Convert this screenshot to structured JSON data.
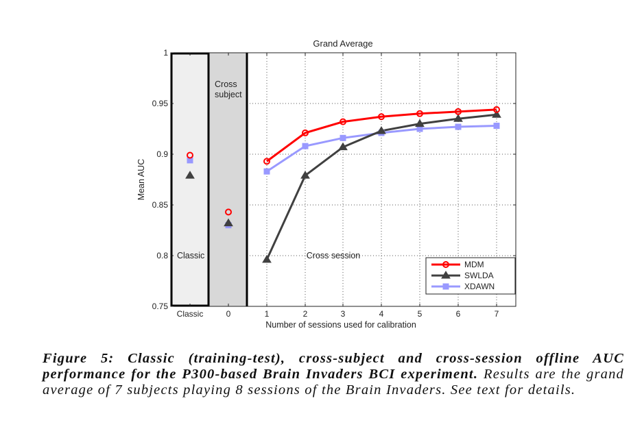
{
  "chart_data": {
    "type": "line",
    "title": "Grand Average",
    "xlabel": "Number of sessions used for calibration",
    "ylabel": "Mean AUC",
    "ylim": [
      0.75,
      1
    ],
    "yticks": [
      "0.75",
      "0.8",
      "0.85",
      "0.9",
      "0.95",
      "1"
    ],
    "yticks_values": [
      0.75,
      0.8,
      0.85,
      0.9,
      0.95,
      1.0
    ],
    "categories": [
      "Classic",
      "0",
      "1",
      "2",
      "3",
      "4",
      "5",
      "6",
      "7"
    ],
    "grid": true,
    "legend_position": "bottom-right",
    "regions": {
      "classic": "Classic",
      "cross_subject": "Cross\nsubject",
      "cross_session": "Cross session"
    },
    "series": [
      {
        "name": "MDM",
        "color": "#ff0000",
        "marker": "circle",
        "classic": 0.899,
        "cross_subject": 0.843,
        "cross_session": [
          0.893,
          0.921,
          0.932,
          0.937,
          0.94,
          0.942,
          0.944
        ]
      },
      {
        "name": "SWLDA",
        "color": "#404040",
        "marker": "triangle",
        "classic": 0.879,
        "cross_subject": 0.832,
        "cross_session": [
          0.796,
          0.879,
          0.907,
          0.923,
          0.93,
          0.935,
          0.939
        ]
      },
      {
        "name": "XDAWN",
        "color": "#9999ff",
        "marker": "square",
        "classic": 0.894,
        "cross_subject": 0.83,
        "cross_session": [
          0.883,
          0.908,
          0.916,
          0.921,
          0.925,
          0.927,
          0.928
        ]
      }
    ]
  },
  "caption": {
    "bold": "Figure 5: Classic (training-test), cross-subject and cross-session offline AUC performance for the P300-based Brain Invaders BCI experiment.",
    "rest": " Results are the grand average of 7 subjects playing 8 sessions of the Brain Invaders. See text for details."
  }
}
